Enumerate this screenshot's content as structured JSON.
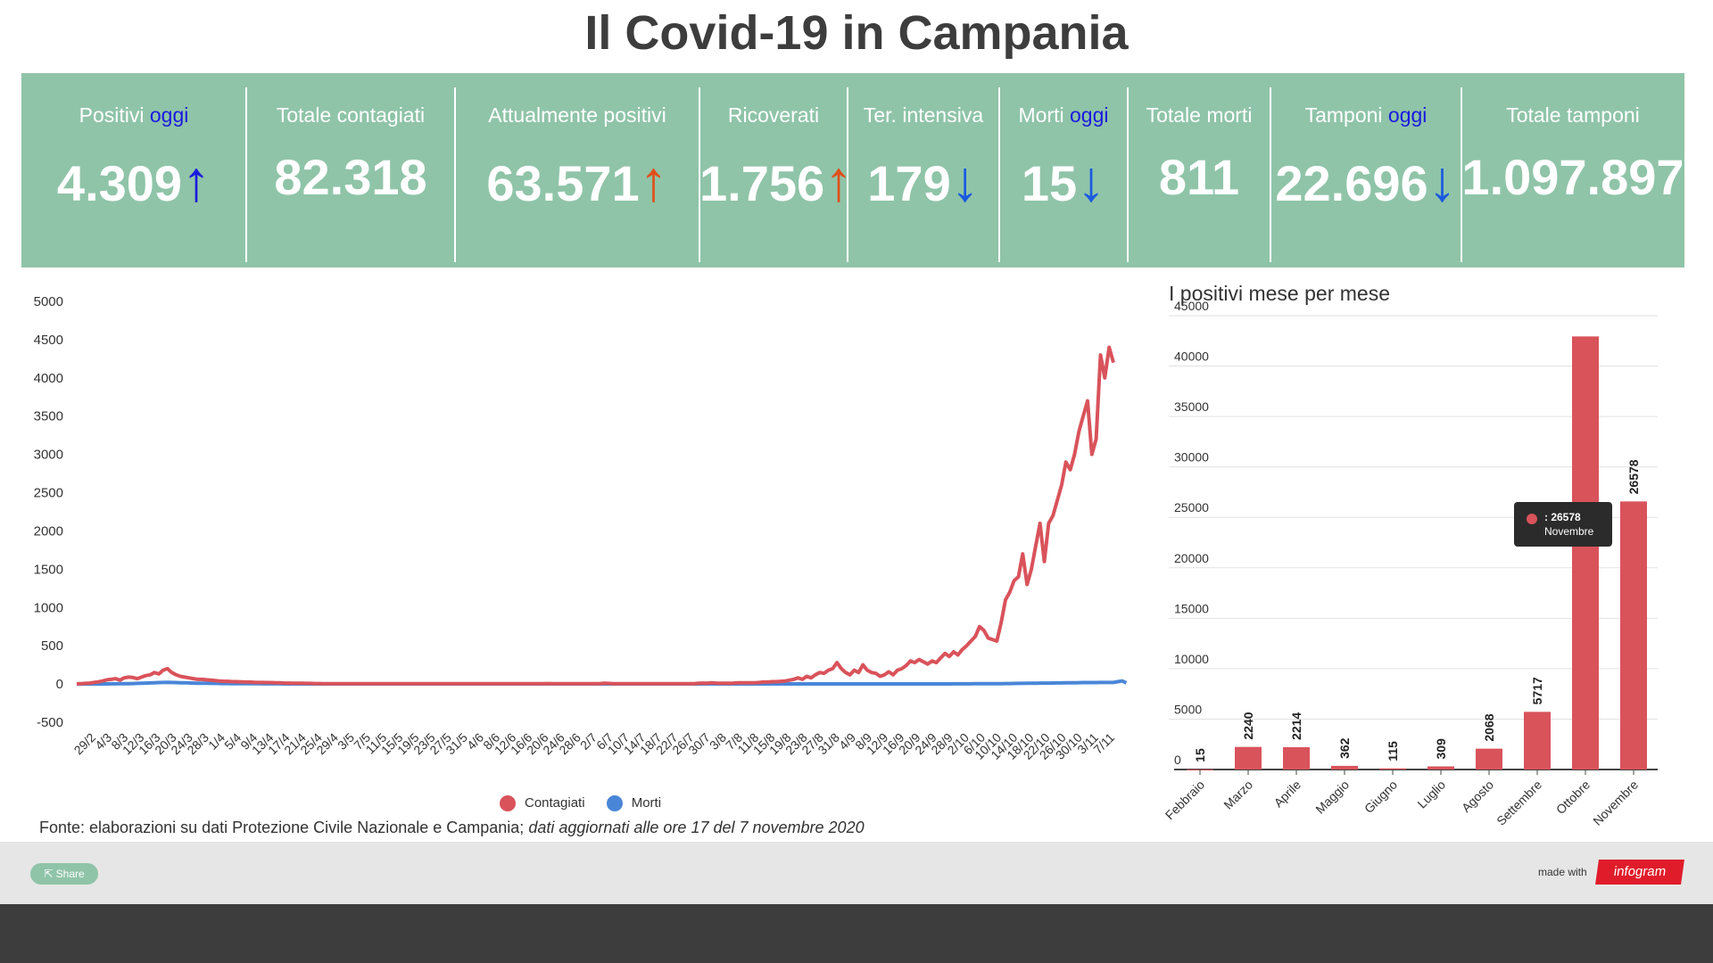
{
  "title": "Il Covid-19 in Campania",
  "stats": [
    {
      "label": "Positivi",
      "highlight": "oggi",
      "value": "4.309",
      "arrow": "↑",
      "arrow_color": "up-blue"
    },
    {
      "label": "Totale contagiati",
      "highlight": "",
      "value": "82.318",
      "arrow": "",
      "arrow_color": ""
    },
    {
      "label": "Attualmente positivi",
      "highlight": "",
      "value": "63.571",
      "arrow": "↑",
      "arrow_color": "up-red"
    },
    {
      "label": "Ricoverati",
      "highlight": "",
      "value": "1.756",
      "arrow": "↑",
      "arrow_color": "up-red"
    },
    {
      "label": "Ter. intensiva",
      "highlight": "",
      "value": "179",
      "arrow": "↓",
      "arrow_color": "down-blue"
    },
    {
      "label": "Morti",
      "highlight": "oggi",
      "value": "15",
      "arrow": "↓",
      "arrow_color": "down-blue"
    },
    {
      "label": "Totale morti",
      "highlight": "",
      "value": "811",
      "arrow": "",
      "arrow_color": ""
    },
    {
      "label": "Tamponi",
      "highlight": "oggi",
      "value": "22.696",
      "arrow": "↓",
      "arrow_color": "down-blue"
    },
    {
      "label": "Totale tamponi",
      "highlight": "",
      "value": "1.097.897",
      "arrow": "",
      "arrow_color": ""
    }
  ],
  "colors": {
    "panel": "#8fc4a8",
    "contagiati": "#d9535b",
    "morti": "#4a86d8",
    "bar": "#d9535b"
  },
  "chart_data": [
    {
      "type": "line",
      "title": "",
      "ylim": [
        -500,
        5000
      ],
      "yticks": [
        5000,
        4500,
        4000,
        3500,
        3000,
        2500,
        2000,
        1500,
        1000,
        500,
        0,
        -500
      ],
      "grid": false,
      "legend": "bottom",
      "x_tick_labels": [
        "29/2",
        "4/3",
        "8/3",
        "12/3",
        "16/3",
        "20/3",
        "24/3",
        "28/3",
        "1/4",
        "5/4",
        "9/4",
        "13/4",
        "17/4",
        "21/4",
        "25/4",
        "29/4",
        "3/5",
        "7/5",
        "11/5",
        "15/5",
        "19/5",
        "23/5",
        "27/5",
        "31/5",
        "4/6",
        "8/6",
        "12/6",
        "16/6",
        "20/6",
        "24/6",
        "28/6",
        "2/7",
        "6/7",
        "10/7",
        "14/7",
        "18/7",
        "22/7",
        "26/7",
        "30/7",
        "3/8",
        "7/8",
        "11/8",
        "15/8",
        "19/8",
        "23/8",
        "27/8",
        "31/8",
        "4/9",
        "8/9",
        "12/9",
        "16/9",
        "20/9",
        "24/9",
        "28/9",
        "2/10",
        "6/10",
        "10/10",
        "14/10",
        "18/10",
        "22/10",
        "26/10",
        "30/10",
        "3/11",
        "7/11"
      ],
      "series": [
        {
          "name": "Contagiati",
          "color": "#d9535b",
          "values": [
            2,
            5,
            8,
            12,
            20,
            28,
            40,
            55,
            60,
            70,
            50,
            80,
            90,
            85,
            70,
            90,
            110,
            120,
            150,
            130,
            180,
            200,
            150,
            120,
            100,
            90,
            80,
            70,
            60,
            60,
            55,
            50,
            45,
            40,
            35,
            35,
            30,
            30,
            28,
            25,
            25,
            22,
            20,
            20,
            18,
            18,
            15,
            15,
            12,
            12,
            10,
            10,
            10,
            8,
            8,
            6,
            6,
            5,
            5,
            5,
            5,
            4,
            4,
            4,
            4,
            3,
            3,
            3,
            3,
            3,
            3,
            3,
            3,
            3,
            3,
            3,
            3,
            3,
            3,
            3,
            3,
            3,
            3,
            3,
            3,
            3,
            3,
            3,
            3,
            3,
            3,
            3,
            3,
            3,
            3,
            3,
            3,
            3,
            3,
            3,
            3,
            3,
            3,
            3,
            3,
            3,
            3,
            3,
            5,
            6,
            5,
            5,
            5,
            5,
            5,
            5,
            5,
            5,
            5,
            5,
            5,
            5,
            10,
            8,
            5,
            5,
            5,
            5,
            5,
            5,
            5,
            5,
            5,
            5,
            5,
            5,
            5,
            5,
            5,
            5,
            5,
            5,
            5,
            5,
            10,
            12,
            10,
            15,
            12,
            10,
            10,
            10,
            12,
            15,
            15,
            15,
            15,
            15,
            20,
            25,
            25,
            30,
            30,
            35,
            40,
            50,
            60,
            80,
            60,
            100,
            80,
            120,
            150,
            140,
            180,
            200,
            280,
            200,
            150,
            120,
            180,
            150,
            250,
            180,
            150,
            140,
            100,
            120,
            160,
            120,
            180,
            200,
            240,
            300,
            280,
            320,
            290,
            260,
            300,
            280,
            340,
            400,
            360,
            420,
            380,
            450,
            500,
            560,
            620,
            750,
            700,
            600,
            580,
            560,
            800,
            1100,
            1200,
            1350,
            1400,
            1700,
            1300,
            1500,
            1800,
            2100,
            1600,
            2100,
            2200,
            2400,
            2600,
            2900,
            2800,
            3000,
            3300,
            3500,
            3700,
            3000,
            3200,
            4300,
            4000,
            4400,
            4200
          ]
        },
        {
          "name": "Morti",
          "color": "#4a86d8",
          "values": [
            0,
            0,
            0,
            0,
            0,
            0,
            1,
            1,
            2,
            2,
            3,
            4,
            5,
            6,
            8,
            10,
            12,
            14,
            16,
            18,
            20,
            22,
            20,
            18,
            16,
            15,
            14,
            12,
            10,
            10,
            9,
            8,
            8,
            7,
            6,
            6,
            5,
            5,
            4,
            4,
            3,
            3,
            3,
            2,
            2,
            2,
            2,
            2,
            1,
            1,
            1,
            1,
            1,
            1,
            1,
            1,
            1,
            1,
            1,
            1,
            1,
            1,
            1,
            1,
            1,
            1,
            1,
            1,
            1,
            1,
            1,
            1,
            1,
            1,
            1,
            1,
            1,
            1,
            1,
            1,
            1,
            1,
            1,
            1,
            1,
            1,
            1,
            1,
            1,
            1,
            1,
            1,
            1,
            1,
            1,
            1,
            1,
            1,
            1,
            1,
            1,
            1,
            1,
            1,
            1,
            1,
            1,
            1,
            1,
            1,
            1,
            1,
            1,
            1,
            1,
            1,
            1,
            1,
            1,
            1,
            1,
            1,
            1,
            1,
            1,
            1,
            1,
            1,
            1,
            1,
            1,
            1,
            1,
            1,
            1,
            1,
            1,
            1,
            1,
            1,
            1,
            1,
            1,
            1,
            1,
            1,
            1,
            1,
            1,
            1,
            1,
            1,
            1,
            1,
            1,
            1,
            1,
            1,
            1,
            1,
            1,
            1,
            1,
            1,
            1,
            1,
            1,
            1,
            1,
            1,
            1,
            1,
            1,
            1,
            1,
            1,
            1,
            1,
            1,
            1,
            1,
            1,
            1,
            1,
            1,
            1,
            1,
            1,
            1,
            1,
            1,
            1,
            1,
            1,
            1,
            1,
            1,
            1,
            1,
            1,
            1,
            1,
            1,
            2,
            2,
            2,
            2,
            2,
            3,
            3,
            3,
            4,
            4,
            5,
            5,
            6,
            6,
            7,
            8,
            8,
            9,
            10,
            10,
            11,
            12,
            12,
            13,
            14,
            14,
            15,
            16,
            16,
            17,
            18,
            18,
            18,
            19,
            20,
            20,
            20,
            20,
            30,
            40,
            15
          ]
        }
      ]
    },
    {
      "type": "bar",
      "title": "I positivi mese per mese",
      "ylim": [
        0,
        45000
      ],
      "yticks": [
        45000,
        40000,
        35000,
        30000,
        25000,
        20000,
        15000,
        10000,
        5000,
        0
      ],
      "grid": true,
      "categories": [
        "Febbraio",
        "Marzo",
        "Aprile",
        "Maggio",
        "Giugno",
        "Luglio",
        "Agosto",
        "Settembre",
        "Ottobre",
        "Novembre"
      ],
      "values": [
        15,
        2240,
        2214,
        362,
        115,
        309,
        2068,
        5717,
        42939,
        26578
      ],
      "value_labels": [
        "15",
        "2240",
        "2214",
        "362",
        "115",
        "309",
        "2068",
        "5717",
        "",
        "26578"
      ],
      "tooltip": {
        "value": ": 26578",
        "label": "Novembre"
      }
    }
  ],
  "legend": [
    {
      "name": "Contagiati",
      "color": "#d9535b"
    },
    {
      "name": "Morti",
      "color": "#4a86d8"
    }
  ],
  "source": {
    "plain": "Fonte: elaborazioni su dati Protezione Civile Nazionale e Campania;",
    "italic": "dati aggiornati alle ore 17 del 7 novembre 2020"
  },
  "footer": {
    "share": "Share",
    "made_with": "made with",
    "brand": "infogram"
  }
}
